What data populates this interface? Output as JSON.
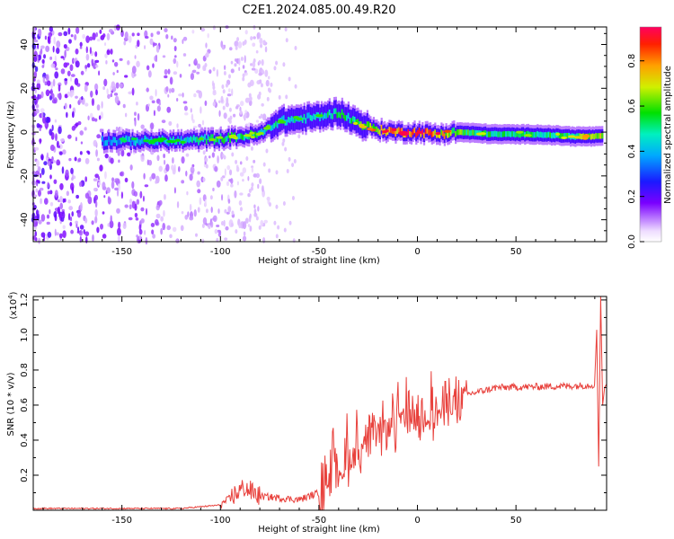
{
  "title": "C2E1.2024.085.00.49.R20",
  "chart_data": [
    {
      "type": "heatmap",
      "name": "spectrogram",
      "xlabel": "Height of straight line (km)",
      "ylabel": "Frequency (Hz)",
      "xlim": [
        -195,
        96
      ],
      "ylim": [
        -50,
        48
      ],
      "x_ticks": [
        -150,
        -100,
        -50,
        0,
        50
      ],
      "y_ticks": [
        -40,
        -20,
        0,
        20,
        40
      ],
      "colorbar": {
        "label": "Normalized spectral amplitude",
        "range": [
          0,
          0.95
        ],
        "ticks": [
          0.0,
          0.2,
          0.4,
          0.6,
          0.8
        ]
      },
      "ridge": [
        {
          "x": -160,
          "y": -4,
          "amp": 0.4
        },
        {
          "x": -140,
          "y": -4,
          "amp": 0.45
        },
        {
          "x": -120,
          "y": -4,
          "amp": 0.48
        },
        {
          "x": -100,
          "y": -3,
          "amp": 0.55
        },
        {
          "x": -90,
          "y": -2,
          "amp": 0.58
        },
        {
          "x": -80,
          "y": -1,
          "amp": 0.55
        },
        {
          "x": -70,
          "y": 5,
          "amp": 0.5
        },
        {
          "x": -60,
          "y": 6,
          "amp": 0.5
        },
        {
          "x": -50,
          "y": 7,
          "amp": 0.5
        },
        {
          "x": -40,
          "y": 9,
          "amp": 0.55
        },
        {
          "x": -30,
          "y": 4,
          "amp": 0.6
        },
        {
          "x": -20,
          "y": 1,
          "amp": 0.78
        },
        {
          "x": -10,
          "y": 0,
          "amp": 0.88
        },
        {
          "x": 0,
          "y": 0,
          "amp": 0.92
        },
        {
          "x": 10,
          "y": -1,
          "amp": 0.85
        },
        {
          "x": 20,
          "y": 0,
          "amp": 0.65
        },
        {
          "x": 40,
          "y": -1,
          "amp": 0.55
        },
        {
          "x": 60,
          "y": -1,
          "amp": 0.55
        },
        {
          "x": 80,
          "y": -2,
          "amp": 0.6
        },
        {
          "x": 94,
          "y": -2,
          "amp": 0.8
        }
      ]
    },
    {
      "type": "line",
      "name": "snr",
      "xlabel": "Height of straight line (km)",
      "ylabel": "SNR (10 * v/v)",
      "y_scale_label": "(x10",
      "y_scale_exponent": "4",
      "xlim": [
        -195,
        96
      ],
      "ylim": [
        0,
        1.22
      ],
      "x_ticks": [
        -150,
        -100,
        -50,
        0,
        50
      ],
      "y_ticks": [
        0.2,
        0.4,
        0.6,
        0.8,
        1.0,
        1.2
      ],
      "color": "#e8413c",
      "trend": [
        {
          "x": -195,
          "y": 0.01
        },
        {
          "x": -120,
          "y": 0.01
        },
        {
          "x": -100,
          "y": 0.03
        },
        {
          "x": -88,
          "y": 0.13
        },
        {
          "x": -80,
          "y": 0.08
        },
        {
          "x": -60,
          "y": 0.06
        },
        {
          "x": -50,
          "y": 0.1
        },
        {
          "x": -40,
          "y": 0.22
        },
        {
          "x": -25,
          "y": 0.4
        },
        {
          "x": -10,
          "y": 0.5
        },
        {
          "x": 10,
          "y": 0.55
        },
        {
          "x": 25,
          "y": 0.66
        },
        {
          "x": 40,
          "y": 0.7
        },
        {
          "x": 80,
          "y": 0.71
        },
        {
          "x": 96,
          "y": 0.72
        }
      ],
      "spikes": [
        {
          "x": 91,
          "y": 1.03
        },
        {
          "x": 92,
          "y": 0.25
        },
        {
          "x": 93,
          "y": 1.22
        },
        {
          "x": 94,
          "y": 0.6
        }
      ]
    }
  ]
}
